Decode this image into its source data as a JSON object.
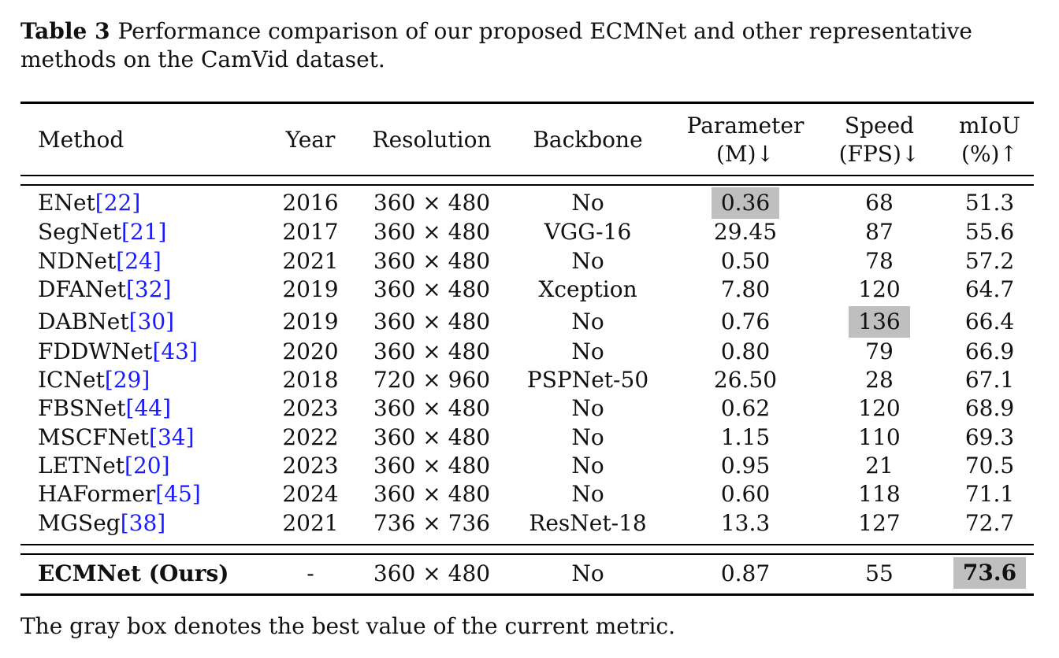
{
  "caption": {
    "label": "Table 3",
    "text": "Performance comparison of our proposed ECMNet and other representative methods on the CamVid dataset."
  },
  "header": {
    "method": "Method",
    "year": "Year",
    "resolution": "Resolution",
    "backbone": "Backbone",
    "parameter_l1": "Parameter",
    "parameter_l2": "(M)↓",
    "speed_l1": "Speed",
    "speed_l2": "(FPS)↓",
    "miou_l1": "mIoU",
    "miou_l2": "(%)↑"
  },
  "rows": [
    {
      "method": "ENet",
      "ref": "[22]",
      "year": "2016",
      "resolution": "360 × 480",
      "backbone": "No",
      "param": "0.36",
      "speed": "68",
      "miou": "51.3"
    },
    {
      "method": "SegNet",
      "ref": "[21]",
      "year": "2017",
      "resolution": "360 × 480",
      "backbone": "VGG-16",
      "param": "29.45",
      "speed": "87",
      "miou": "55.6"
    },
    {
      "method": "NDNet",
      "ref": "[24]",
      "year": "2021",
      "resolution": "360 × 480",
      "backbone": "No",
      "param": "0.50",
      "speed": "78",
      "miou": "57.2"
    },
    {
      "method": "DFANet",
      "ref": "[32]",
      "year": "2019",
      "resolution": "360 × 480",
      "backbone": "Xception",
      "param": "7.80",
      "speed": "120",
      "miou": "64.7"
    },
    {
      "method": "DABNet",
      "ref": "[30]",
      "year": "2019",
      "resolution": "360 × 480",
      "backbone": "No",
      "param": "0.76",
      "speed": "136",
      "miou": "66.4"
    },
    {
      "method": "FDDWNet",
      "ref": "[43]",
      "year": "2020",
      "resolution": "360 × 480",
      "backbone": "No",
      "param": "0.80",
      "speed": "79",
      "miou": "66.9"
    },
    {
      "method": "ICNet",
      "ref": "[29]",
      "year": "2018",
      "resolution": "720 × 960",
      "backbone": "PSPNet-50",
      "param": "26.50",
      "speed": "28",
      "miou": "67.1"
    },
    {
      "method": "FBSNet",
      "ref": "[44]",
      "year": "2023",
      "resolution": "360 × 480",
      "backbone": "No",
      "param": "0.62",
      "speed": "120",
      "miou": "68.9"
    },
    {
      "method": "MSCFNet",
      "ref": "[34]",
      "year": "2022",
      "resolution": "360 × 480",
      "backbone": "No",
      "param": "1.15",
      "speed": "110",
      "miou": "69.3"
    },
    {
      "method": "LETNet",
      "ref": "[20]",
      "year": "2023",
      "resolution": "360 × 480",
      "backbone": "No",
      "param": "0.95",
      "speed": "21",
      "miou": "70.5"
    },
    {
      "method": "HAFormer",
      "ref": "[45]",
      "year": "2024",
      "resolution": "360 × 480",
      "backbone": "No",
      "param": "0.60",
      "speed": "118",
      "miou": "71.1"
    },
    {
      "method": "MGSeg",
      "ref": "[38]",
      "year": "2021",
      "resolution": "736 × 736",
      "backbone": "ResNet-18",
      "param": "13.3",
      "speed": "127",
      "miou": "72.7"
    }
  ],
  "ours": {
    "method": "ECMNet (Ours)",
    "year": "-",
    "resolution": "360 × 480",
    "backbone": "No",
    "param": "0.87",
    "speed": "55",
    "miou": "73.6"
  },
  "footnote": "The gray box denotes the best value of the current metric.",
  "colors": {
    "highlight": "#bfbfbf",
    "citation": "#1a1aff"
  }
}
